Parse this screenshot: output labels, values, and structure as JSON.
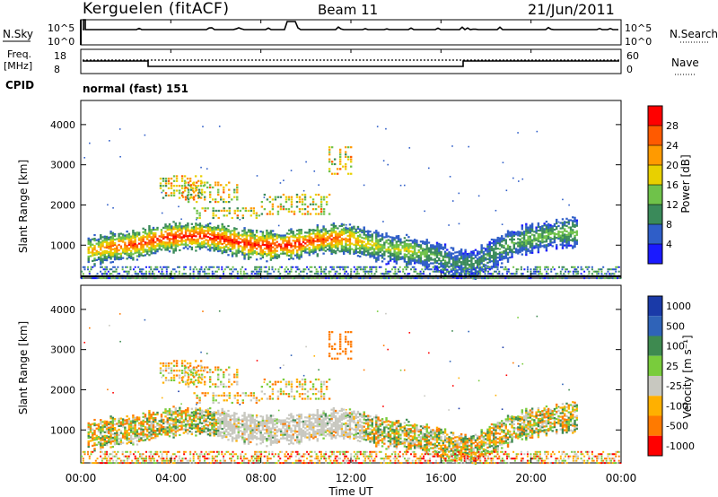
{
  "header": {
    "site": "Kerguelen (fitACF)",
    "beam": "Beam 11",
    "date": "21/Jun/2011"
  },
  "nsky_panel": {
    "left_label": "N.Sky",
    "left_ticks": [
      "10^5",
      "10^0"
    ],
    "right_label": "N.Search",
    "right_ticks": [
      "10^5",
      "10^0"
    ]
  },
  "freq_panel": {
    "left_label_1": "Freq.",
    "left_label_2": "[MHz]",
    "left_ticks": [
      "18",
      "8"
    ],
    "right_label": "Nave",
    "right_ticks": [
      "60",
      "0"
    ]
  },
  "cpid": {
    "label": "CPID",
    "value": "normal (fast) 151"
  },
  "chart_data": [
    {
      "type": "heatmap",
      "name": "power",
      "ylabel": "Slant Range [km]",
      "ylim": [
        180,
        4600
      ],
      "yticks": [
        1000,
        2000,
        3000,
        4000
      ],
      "colorbar_label": "Power [dB]",
      "colorbar_ticks": [
        "4",
        "8",
        "12",
        "16",
        "20",
        "24",
        "28"
      ],
      "colorbar_colors": [
        "#1a1aff",
        "#2f5ec8",
        "#3a8a5a",
        "#6fc24a",
        "#e8d000",
        "#ff9a00",
        "#ff5a00",
        "#ff0000"
      ],
      "x_hours": [
        0.5,
        1.5,
        2.5,
        3.5,
        4.5,
        5.5,
        6.5,
        7.5,
        8.5,
        9.5,
        10.5,
        11.5,
        12.5,
        13.5,
        14.5,
        15.5,
        16.5,
        17.5,
        18.5,
        19.5,
        20.5,
        21.5
      ],
      "echo_band_center_km": [
        900,
        1000,
        1050,
        1200,
        1250,
        1250,
        1150,
        1050,
        1000,
        1050,
        1150,
        1200,
        1100,
        950,
        900,
        800,
        600,
        550,
        900,
        1150,
        1250,
        1350
      ],
      "echo_band_peak_db": [
        20,
        24,
        26,
        28,
        28,
        28,
        28,
        28,
        28,
        28,
        26,
        24,
        18,
        14,
        16,
        12,
        8,
        8,
        10,
        12,
        12,
        12
      ]
    },
    {
      "type": "heatmap",
      "name": "velocity",
      "ylabel": "Slant Range [km]",
      "ylim": [
        180,
        4600
      ],
      "yticks": [
        1000,
        2000,
        3000,
        4000
      ],
      "colorbar_label": "Velocity [m s⁻¹]",
      "colorbar_ticks": [
        "1000",
        "500",
        "100",
        "25",
        "-25",
        "-100",
        "-500",
        "-1000"
      ],
      "colorbar_colors": [
        "#1a3aa8",
        "#2f63b8",
        "#3e8a50",
        "#79cc3c",
        "#c8c8c0",
        "#ffb000",
        "#ff7a00",
        "#ff0000"
      ]
    }
  ],
  "x_axis": {
    "ticks": [
      "00:00",
      "04:00",
      "08:00",
      "12:00",
      "16:00",
      "20:00",
      "00:00"
    ],
    "label": "Time UT"
  },
  "power_panel": {
    "ytick_labels": [
      "1000",
      "2000",
      "3000",
      "4000"
    ]
  },
  "velocity_panel": {
    "ytick_labels": [
      "1000",
      "2000",
      "3000",
      "4000"
    ]
  }
}
